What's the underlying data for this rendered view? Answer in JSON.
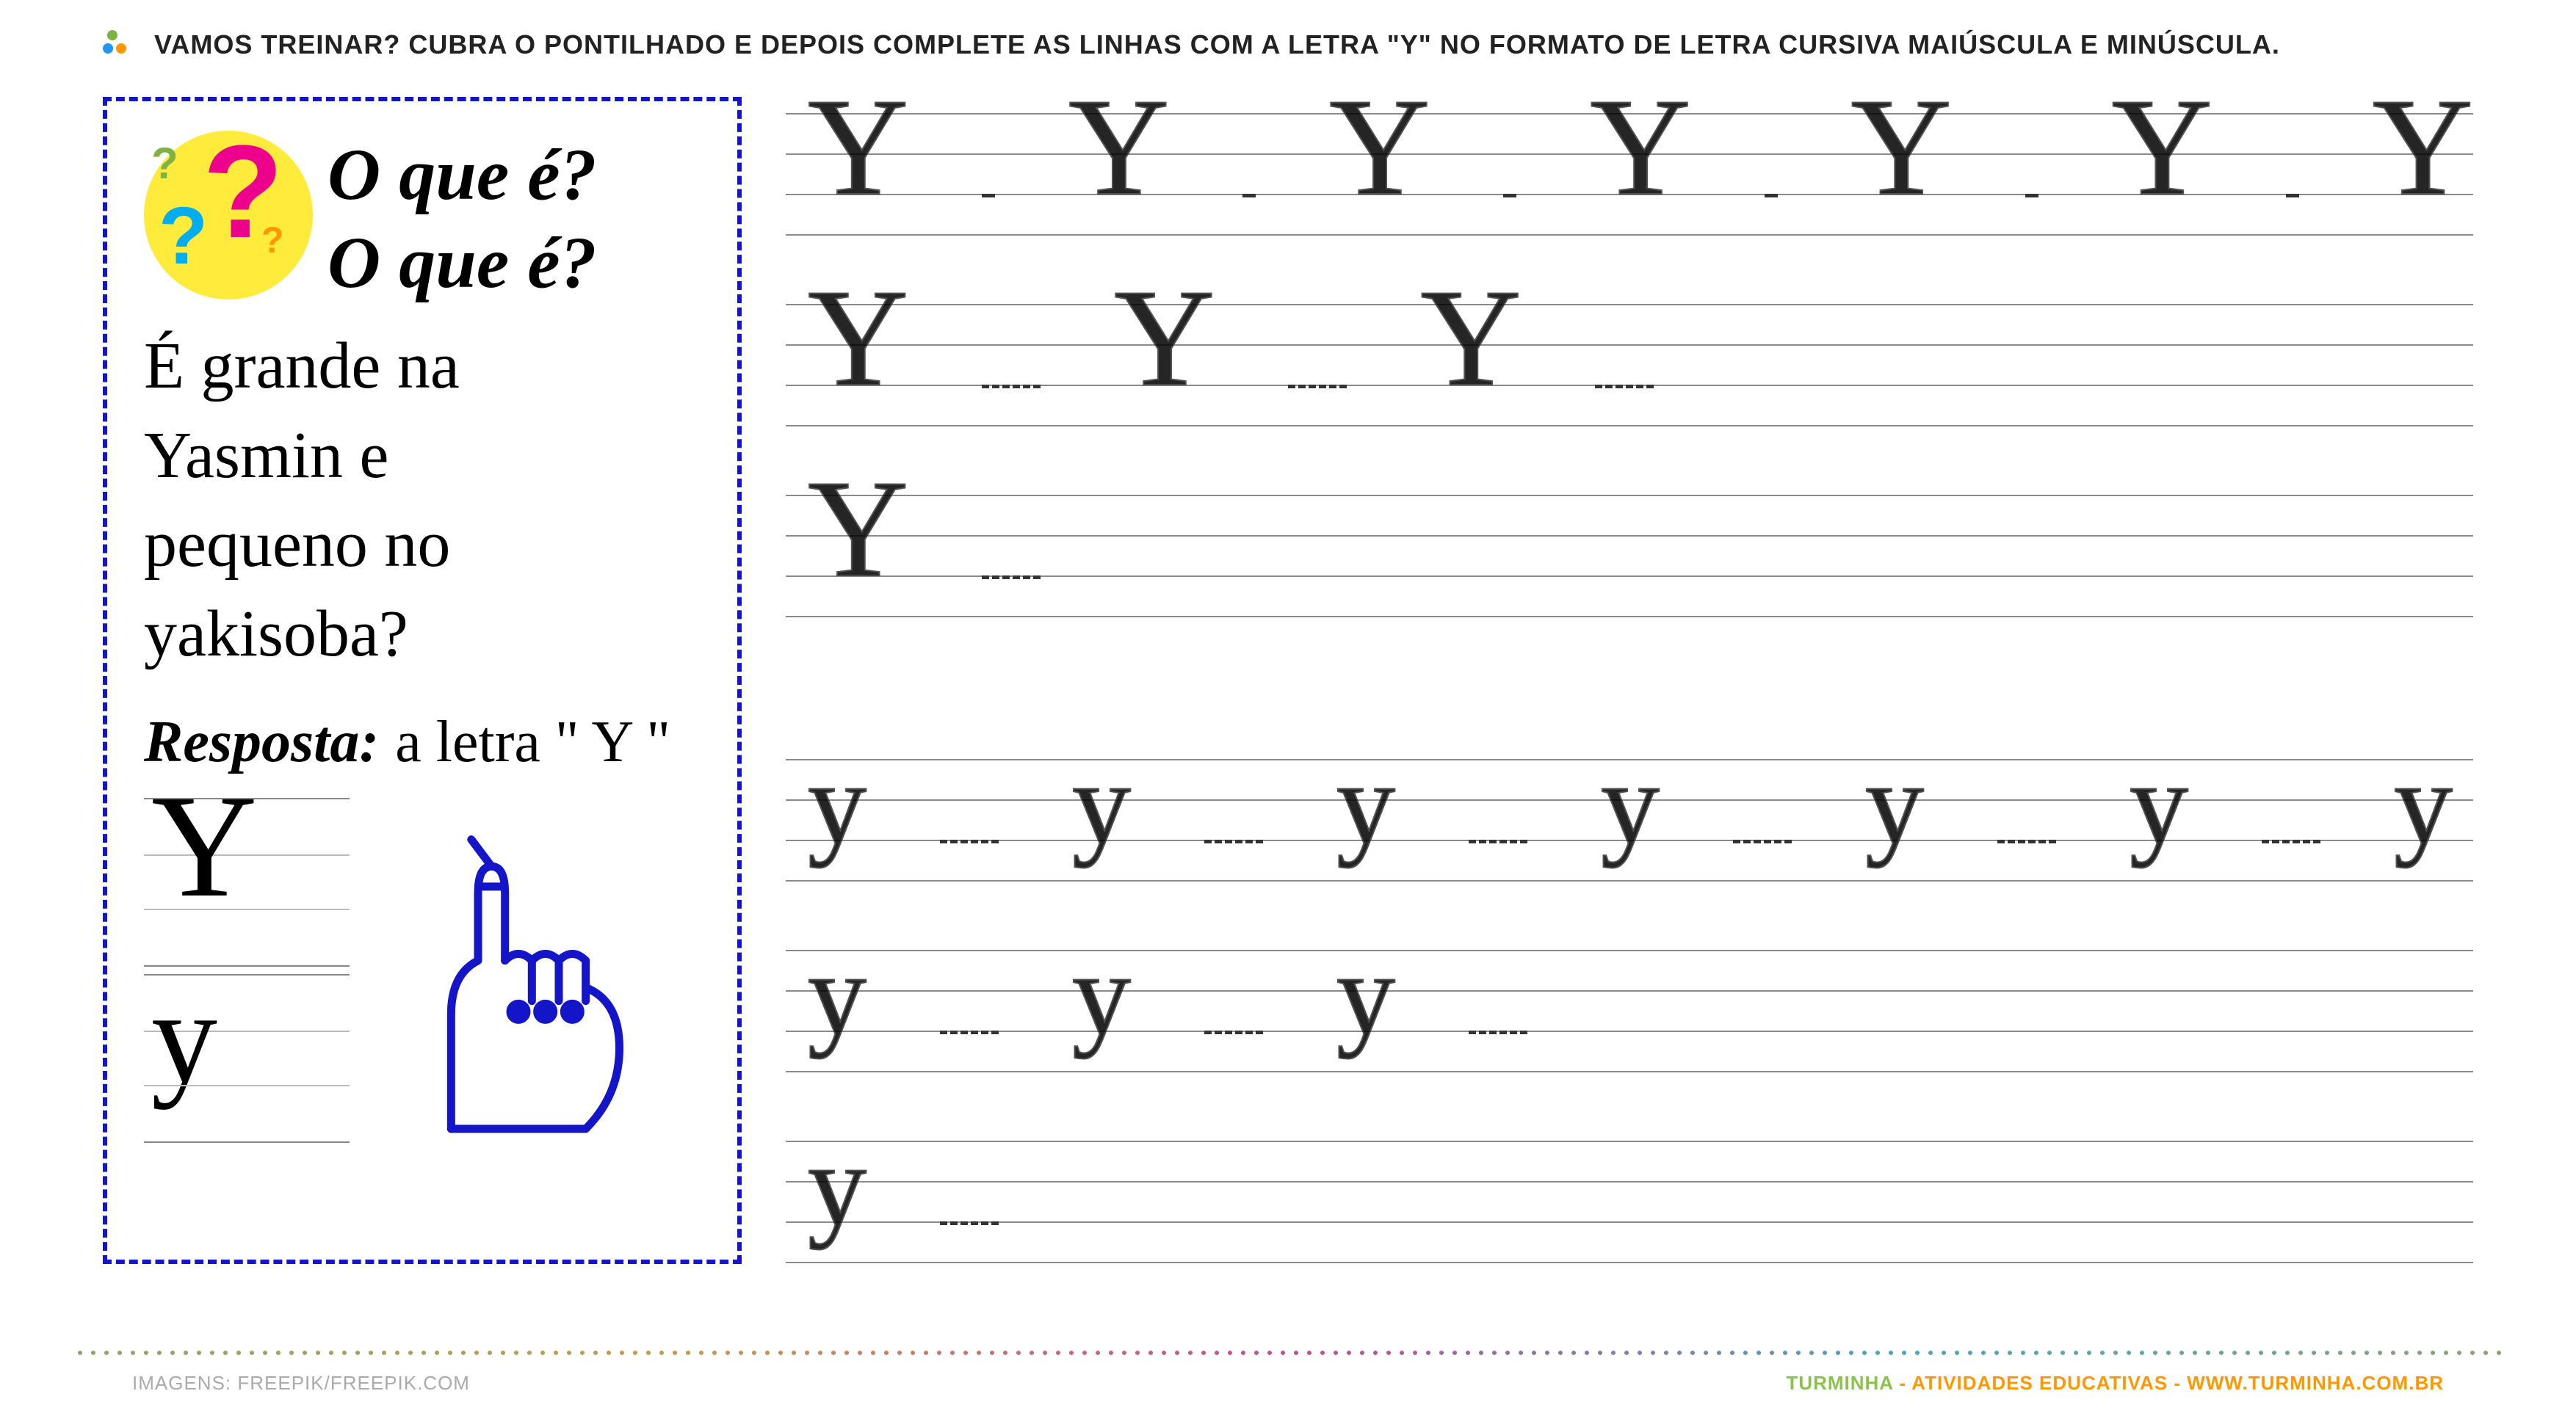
{
  "header": {
    "instruction": "VAMOS TREINAR? CUBRA O PONTILHADO E DEPOIS COMPLETE AS LINHAS COM A LETRA \"Y\" NO FORMATO DE LETRA CURSIVA MAIÚSCULA E MINÚSCULA.",
    "icon_dots": [
      "#7CB342",
      "#2196F3",
      "#FF9800"
    ]
  },
  "riddle": {
    "border_color": "#1414c8",
    "circle_bg": "#FFEB3B",
    "question_marks": {
      "big": {
        "glyph": "?",
        "color": "#EC008C"
      },
      "mid": {
        "glyph": "?",
        "color": "#00AEEF"
      },
      "sm1": {
        "glyph": "?",
        "color": "#7CB342"
      },
      "sm2": {
        "glyph": "?",
        "color": "#FF9800"
      }
    },
    "title_line1": "O que é?",
    "title_line2": "O que é?",
    "body_line1": "É grande na",
    "body_line2": "Yasmin e",
    "body_line3": "pequeno no",
    "body_line4": "yakisoba?",
    "resposta_label": "Resposta:",
    "resposta_answer": "a letra \" Y \"",
    "example_upper": "Y",
    "example_lower": "y",
    "hand_color": "#1414c8"
  },
  "practice": {
    "rule_color": "#8a8a8a",
    "rows": [
      {
        "type": "upper",
        "letters": [
          "Y",
          "Y",
          "Y",
          "Y",
          "Y",
          "Y",
          "Y"
        ]
      },
      {
        "type": "upper",
        "letters": [
          "Y",
          "Y",
          "Y"
        ]
      },
      {
        "type": "upper",
        "letters": [
          "Y"
        ]
      },
      {
        "type": "lower",
        "letters": [
          "y",
          "y",
          "y",
          "y",
          "y",
          "y",
          "y"
        ]
      },
      {
        "type": "lower",
        "letters": [
          "y",
          "y",
          "y"
        ]
      },
      {
        "type": "lower",
        "letters": [
          "y"
        ]
      }
    ],
    "trace_font_size_upper": 190,
    "trace_font_size_lower": 160
  },
  "footer": {
    "left": "IMAGENS: FREEPIK/FREEPIK.COM",
    "brand": "TURMINHA",
    "mid": " - ATIVIDADES EDUCATIVAS - ",
    "url": "WWW.TURMINHA.COM.BR"
  }
}
